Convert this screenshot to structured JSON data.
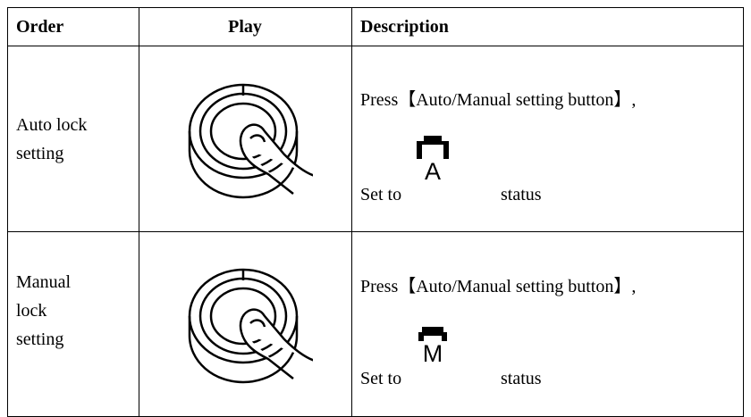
{
  "table": {
    "header": [
      "Order",
      "Play",
      "Description"
    ],
    "rows": [
      {
        "order_lines": [
          "Auto lock",
          "setting"
        ],
        "description": {
          "instruction": "Press【Auto/Manual setting button】,",
          "set_to": "Set to",
          "icon_label": "A",
          "status": "status"
        }
      },
      {
        "order_lines": [
          "Manual",
          "lock",
          "setting"
        ],
        "description": {
          "instruction": "Press【Auto/Manual setting button】,",
          "set_to": "Set to",
          "icon_label": "M",
          "status": "status"
        }
      }
    ]
  }
}
